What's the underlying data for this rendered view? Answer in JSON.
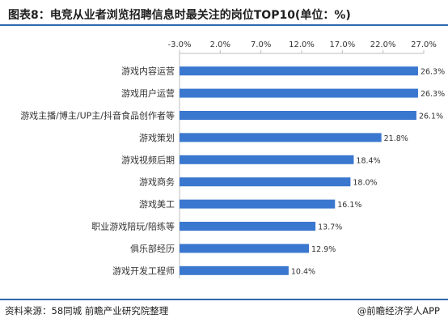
{
  "title": "图表8：电竞从业者浏览招聘信息时最关注的岗位TOP10(单位：%)",
  "footer": {
    "source": "资料来源：58同城 前瞻产业研究院整理",
    "brand": "@前瞻经济学人APP"
  },
  "colors": {
    "bar": "#3a77cf",
    "accent_rule": "#2f6ab0"
  },
  "chart_data": {
    "type": "bar",
    "orientation": "horizontal",
    "title": "图表8：电竞从业者浏览招聘信息时最关注的岗位TOP10(单位：%)",
    "categories": [
      "游戏内容运营",
      "游戏用户运营",
      "游戏主播/博主/UP主/抖音食品创作者等",
      "游戏策划",
      "游戏视频后期",
      "游戏商务",
      "游戏美工",
      "职业游戏陪玩/陪练等",
      "俱乐部经历",
      "游戏开发工程师"
    ],
    "values": [
      26.3,
      26.3,
      26.1,
      21.8,
      18.4,
      18.0,
      16.1,
      13.7,
      12.9,
      10.4
    ],
    "value_labels": [
      "26.3%",
      "26.3%",
      "26.1%",
      "21.8%",
      "18.4%",
      "18.0%",
      "16.1%",
      "13.7%",
      "12.9%",
      "10.4%"
    ],
    "xlim": [
      -3.0,
      27.0
    ],
    "xticks": [
      -3.0,
      2.0,
      7.0,
      12.0,
      17.0,
      22.0,
      27.0
    ],
    "xtick_labels": [
      "-3.0%",
      "2.0%",
      "7.0%",
      "12.0%",
      "17.0%",
      "22.0%",
      "27.0%"
    ],
    "xaxis_position": "top",
    "grid": false,
    "legend": "none"
  }
}
